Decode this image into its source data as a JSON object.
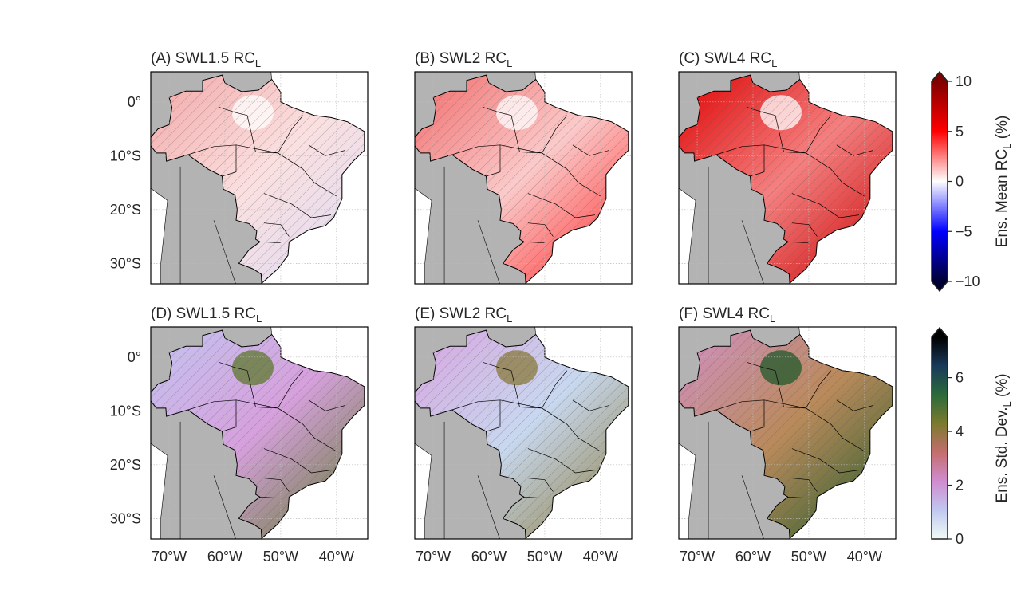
{
  "chart_data": {
    "type": "map-grid",
    "extent": {
      "lon": [
        -73.3,
        -34.4
      ],
      "lat": [
        -33.8,
        5.6
      ]
    },
    "lon_ticks": [
      {
        "v": -70,
        "label": "70°W"
      },
      {
        "v": -60,
        "label": "60°W"
      },
      {
        "v": -50,
        "label": "50°W"
      },
      {
        "v": -40,
        "label": "40°W"
      }
    ],
    "lat_ticks": [
      {
        "v": 0,
        "label": "0°"
      },
      {
        "v": -10,
        "label": "10°S"
      },
      {
        "v": -20,
        "label": "20°S"
      },
      {
        "v": -30,
        "label": "30°S"
      }
    ],
    "grid": true,
    "land_color": "#b3b3b3",
    "panels": [
      {
        "id": "A",
        "title": "(A) SWL1.5 RC",
        "sub": "L",
        "row": 0,
        "col": 0,
        "colors": [
          "#f4a6a6",
          "#fbe0e0",
          "#dcdcf6"
        ]
      },
      {
        "id": "B",
        "title": "(B) SWL2 RC",
        "sub": "L",
        "row": 0,
        "col": 1,
        "colors": [
          "#f26a6a",
          "#fbcaca",
          "#ff2a2a"
        ]
      },
      {
        "id": "C",
        "title": "(C) SWL4 RC",
        "sub": "L",
        "row": 0,
        "col": 2,
        "colors": [
          "#e00000",
          "#f58080",
          "#c80000"
        ]
      },
      {
        "id": "D",
        "title": "(D) SWL1.5 RC",
        "sub": "L",
        "row": 1,
        "col": 0,
        "colors": [
          "#c4c4f2",
          "#d6a0dc",
          "#5e7a2c"
        ]
      },
      {
        "id": "E",
        "title": "(E) SWL2 RC",
        "sub": "L",
        "row": 1,
        "col": 1,
        "colors": [
          "#d8a4e0",
          "#c8d8ef",
          "#8a7a3a"
        ]
      },
      {
        "id": "F",
        "title": "(F) SWL4 RC",
        "sub": "L",
        "row": 1,
        "col": 2,
        "colors": [
          "#d290c6",
          "#b98a5a",
          "#1f5a2a"
        ]
      }
    ],
    "colorbars": [
      {
        "label": "Ens. Mean RC",
        "sub": "L",
        "unit": " (%)",
        "range": [
          -10,
          10
        ],
        "extend": "both",
        "ticks": [
          {
            "v": 10,
            "label": "10"
          },
          {
            "v": 5,
            "label": "5"
          },
          {
            "v": 0,
            "label": "0"
          },
          {
            "v": -5,
            "label": "−5"
          },
          {
            "v": -10,
            "label": "−10"
          }
        ],
        "stops": [
          "#000033",
          "#0000ff",
          "#ffffff",
          "#ff0000",
          "#800000"
        ]
      },
      {
        "label": "Ens. Std. Dev.",
        "sub": "L",
        "unit": " (%)",
        "range": [
          0,
          7.5
        ],
        "extend": "max",
        "ticks": [
          {
            "v": 6,
            "label": "6"
          },
          {
            "v": 4,
            "label": "4"
          },
          {
            "v": 2,
            "label": "2"
          },
          {
            "v": 0,
            "label": "0"
          }
        ],
        "stops": [
          "#f0fbf5",
          "#c0c8f0",
          "#d08cd0",
          "#c46e6e",
          "#7c7a2e",
          "#2a6a3a",
          "#1a3a5a",
          "#000000"
        ]
      }
    ]
  }
}
